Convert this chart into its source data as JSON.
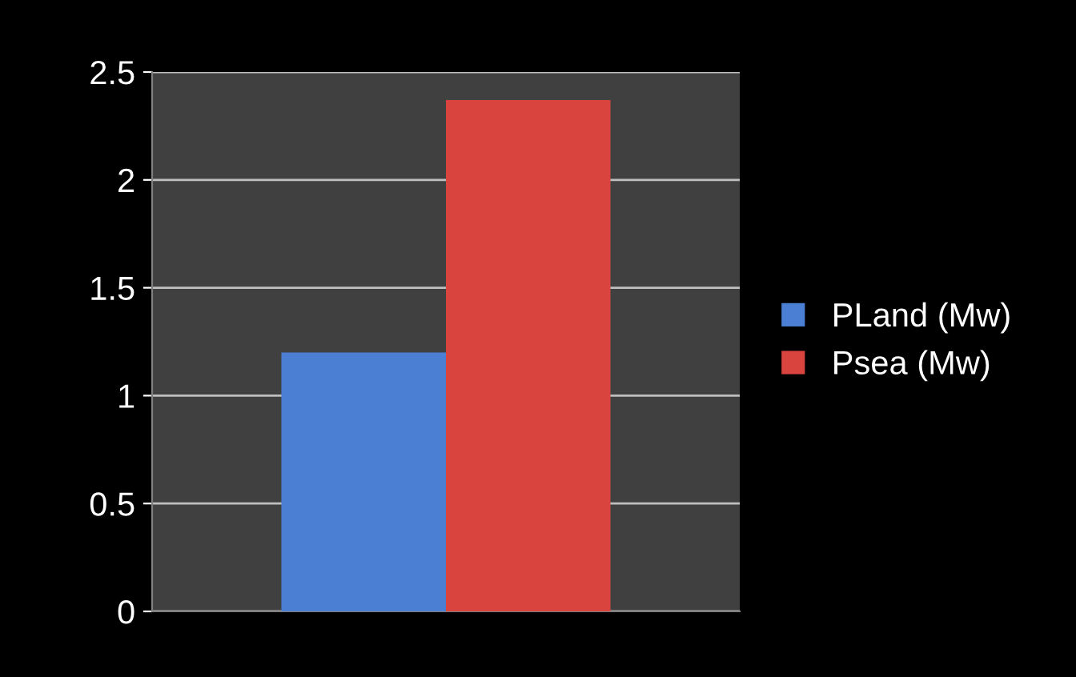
{
  "chart_data": {
    "type": "bar",
    "categories": [
      null
    ],
    "series": [
      {
        "name": "PLand (Mw)",
        "color": "#4a7fd4",
        "values": [
          1.2
        ]
      },
      {
        "name": "Psea (Mw)",
        "color": "#d9443f",
        "values": [
          2.37
        ]
      }
    ],
    "ylim": [
      0,
      2.5
    ],
    "yticks": [
      0,
      0.5,
      1,
      1.5,
      2,
      2.5
    ],
    "grid": "y",
    "legend": "right"
  }
}
